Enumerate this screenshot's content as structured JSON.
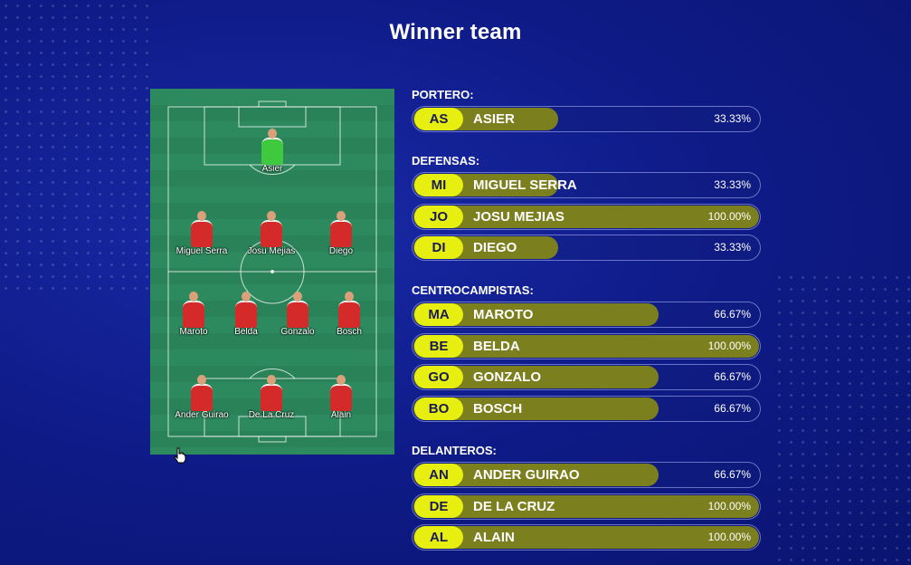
{
  "title": "Winner team",
  "pitch": {
    "players": [
      {
        "name": "Asier",
        "goalkeeper": true
      },
      {
        "name": "Miguel Serra"
      },
      {
        "name": "Josu Mejias"
      },
      {
        "name": "Diego"
      },
      {
        "name": "Maroto"
      },
      {
        "name": "Belda"
      },
      {
        "name": "Gonzalo"
      },
      {
        "name": "Bosch"
      },
      {
        "name": "Ander Guirao"
      },
      {
        "name": "De La Cruz"
      },
      {
        "name": "Alain"
      }
    ]
  },
  "sections": [
    {
      "label": "PORTERO:",
      "players": [
        {
          "abbr": "AS",
          "name": "ASIER",
          "percent": 33.33,
          "percent_label": "33.33%"
        }
      ]
    },
    {
      "label": "DEFENSAS:",
      "players": [
        {
          "abbr": "MI",
          "name": "MIGUEL SERRA",
          "percent": 33.33,
          "percent_label": "33.33%"
        },
        {
          "abbr": "JO",
          "name": "JOSU MEJIAS",
          "percent": 100,
          "percent_label": "100.00%"
        },
        {
          "abbr": "DI",
          "name": "DIEGO",
          "percent": 33.33,
          "percent_label": "33.33%"
        }
      ]
    },
    {
      "label": "CENTROCAMPISTAS:",
      "players": [
        {
          "abbr": "MA",
          "name": "MAROTO",
          "percent": 66.67,
          "percent_label": "66.67%"
        },
        {
          "abbr": "BE",
          "name": "BELDA",
          "percent": 100,
          "percent_label": "100.00%"
        },
        {
          "abbr": "GO",
          "name": "GONZALO",
          "percent": 66.67,
          "percent_label": "66.67%"
        },
        {
          "abbr": "BO",
          "name": "BOSCH",
          "percent": 66.67,
          "percent_label": "66.67%"
        }
      ]
    },
    {
      "label": "DELANTEROS:",
      "players": [
        {
          "abbr": "AN",
          "name": "ANDER GUIRAO",
          "percent": 66.67,
          "percent_label": "66.67%"
        },
        {
          "abbr": "DE",
          "name": "DE LA CRUZ",
          "percent": 100,
          "percent_label": "100.00%"
        },
        {
          "abbr": "AL",
          "name": "ALAIN",
          "percent": 100,
          "percent_label": "100.00%"
        }
      ]
    }
  ],
  "colors": {
    "background": "#0f1c8a",
    "badge": "#e6ef10",
    "bar_fill": "#7b7f1d",
    "pitch": "#2d8a5e",
    "shirt": "#d42a2a",
    "goalkeeper_shirt": "#3ec93e"
  },
  "cursor_icon": "hand-pointer-icon"
}
